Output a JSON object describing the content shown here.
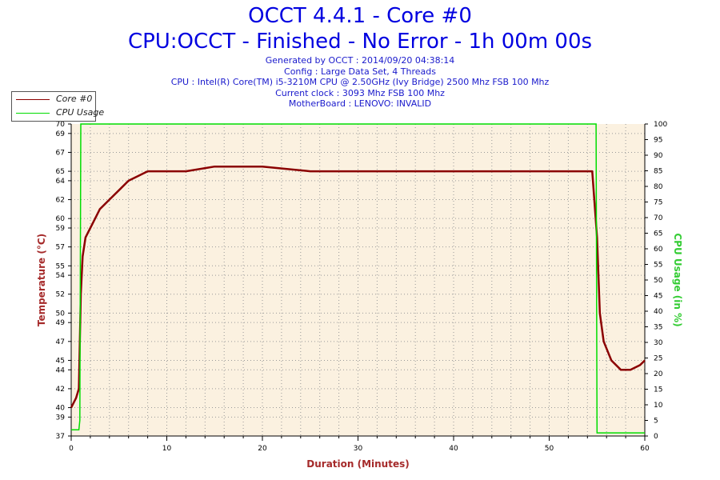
{
  "header": {
    "title": "OCCT 4.4.1 - Core #0",
    "subtitle": "CPU:OCCT - Finished - No Error - 1h 00m 00s",
    "info": [
      "Generated by OCCT : 2014/09/20 04:38:14",
      "Config : Large Data Set, 4 Threads",
      "CPU : Intel(R) Core(TM) i5-3210M CPU @ 2.50GHz (Ivy Bridge) 2500 Mhz FSB 100 Mhz",
      "Current clock : 3093 Mhz FSB 100 Mhz",
      "MotherBoard : LENOVO: INVALID"
    ]
  },
  "legend": {
    "items": [
      {
        "label": "Core #0",
        "color": "#8b0000"
      },
      {
        "label": "CPU Usage",
        "color": "#00dd00"
      }
    ]
  },
  "colors": {
    "temperature": "#8b0000",
    "cpu_usage": "#00dd00",
    "plot_background": "#fbf1e0",
    "grid": "#999999",
    "title": "#0000e0",
    "axis_label_left": "#a52a2a",
    "axis_label_right": "#33cc33"
  },
  "chart_data": {
    "type": "line",
    "xlabel": "Duration (Minutes)",
    "ylabel": "Temperature (°C)",
    "y2label": "CPU Usage (in %)",
    "xlim": [
      0,
      60
    ],
    "ylim": [
      37,
      70
    ],
    "y2lim": [
      0,
      100
    ],
    "x_ticks": [
      0,
      10,
      20,
      30,
      40,
      50,
      60
    ],
    "y_ticks": [
      37,
      39,
      40,
      42,
      44,
      45,
      47,
      49,
      50,
      52,
      54,
      55,
      57,
      59,
      60,
      62,
      64,
      65,
      67,
      69,
      70
    ],
    "y2_ticks": [
      0,
      5,
      10,
      15,
      20,
      25,
      30,
      35,
      40,
      45,
      50,
      55,
      60,
      65,
      70,
      75,
      80,
      85,
      90,
      95,
      100
    ],
    "grid": true,
    "legend_position": "top-left",
    "series": [
      {
        "name": "Core #0",
        "axis": "left",
        "x": [
          0,
          0.5,
          0.8,
          1.0,
          1.2,
          1.5,
          2,
          2.5,
          3,
          4,
          5,
          6,
          7,
          8,
          10,
          12,
          15,
          20,
          25,
          30,
          35,
          40,
          45,
          50,
          54.5,
          55,
          55.3,
          55.7,
          56.5,
          57.5,
          58.5,
          59.5,
          60
        ],
        "y": [
          40,
          41,
          42,
          52,
          56,
          58,
          59,
          60,
          61,
          62,
          63,
          64,
          64.5,
          65,
          65,
          65,
          65.5,
          65.5,
          65,
          65,
          65,
          65,
          65,
          65,
          65,
          58,
          50,
          47,
          45,
          44,
          44,
          44.5,
          45
        ]
      },
      {
        "name": "CPU Usage",
        "axis": "right",
        "x": [
          0,
          0.8,
          0.9,
          1.0,
          54.8,
          54.9,
          55,
          60
        ],
        "y": [
          2,
          2,
          5,
          100,
          100,
          100,
          1,
          1
        ]
      }
    ]
  }
}
